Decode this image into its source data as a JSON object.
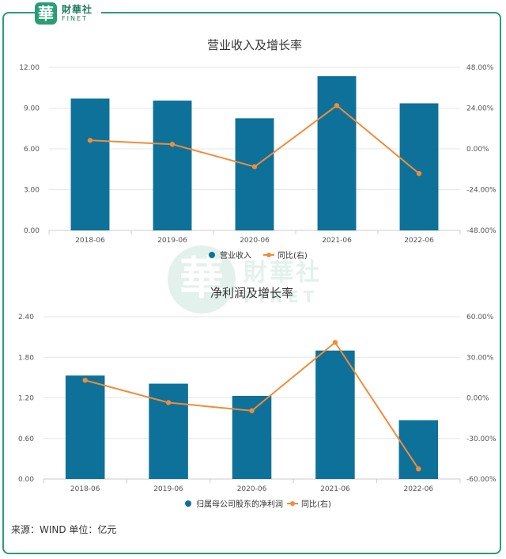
{
  "brand": {
    "logo_glyph": "華",
    "logo_cn": "財華社",
    "logo_en": "FINET",
    "accent": "#2a9d74"
  },
  "source_text": "来源：WIND  单位：亿元",
  "chart_data": [
    {
      "type": "bar",
      "title": "营业收入及增长率",
      "categories": [
        "2018-06",
        "2019-06",
        "2020-06",
        "2021-06",
        "2022-06"
      ],
      "y_ticks": [
        "0.00",
        "3.00",
        "6.00",
        "9.00",
        "12.00"
      ],
      "y2_ticks": [
        "-48.00%",
        "-24.00%",
        "0.00%",
        "24.00%",
        "48.00%"
      ],
      "ylim": [
        0,
        12
      ],
      "y2lim": [
        -48,
        48
      ],
      "series": [
        {
          "name": "营业收入",
          "kind": "bar",
          "axis": "left",
          "color": "#0e7199",
          "values": [
            9.7,
            9.55,
            8.25,
            11.35,
            9.35
          ]
        },
        {
          "name": "同比(右)",
          "kind": "line",
          "axis": "right",
          "color": "#f28c38",
          "values": [
            5.0,
            2.7,
            -10.5,
            25.5,
            -14.5
          ]
        }
      ]
    },
    {
      "type": "bar",
      "title": "净利润及增长率",
      "categories": [
        "2018-06",
        "2019-06",
        "2020-06",
        "2021-06",
        "2022-06"
      ],
      "y_ticks": [
        "0.00",
        "0.60",
        "1.20",
        "1.80",
        "2.40"
      ],
      "y2_ticks": [
        "-60.00%",
        "-30.00%",
        "0.00%",
        "30.00%",
        "60.00%"
      ],
      "ylim": [
        0,
        2.4
      ],
      "y2lim": [
        -60,
        60
      ],
      "series": [
        {
          "name": "归属母公司股东的净利润",
          "kind": "bar",
          "axis": "left",
          "color": "#0e7199",
          "values": [
            1.53,
            1.41,
            1.23,
            1.9,
            0.87
          ]
        },
        {
          "name": "同比(右)",
          "kind": "line",
          "axis": "right",
          "color": "#f28c38",
          "values": [
            13.0,
            -3.5,
            -9.5,
            41.0,
            -52.5
          ]
        }
      ]
    }
  ]
}
